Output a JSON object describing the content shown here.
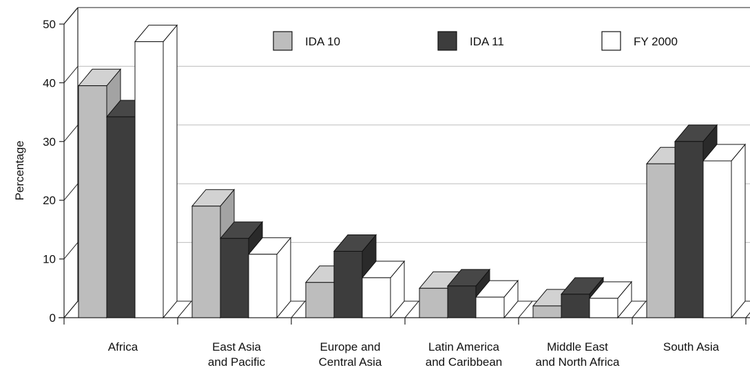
{
  "chart_data": {
    "type": "bar",
    "title": "",
    "xlabel": "",
    "ylabel": "Percentage",
    "ylim": [
      0,
      50
    ],
    "yticks": [
      "0",
      "10",
      "20",
      "30",
      "40",
      "50"
    ],
    "grid": true,
    "legend": "top",
    "categories": [
      [
        "Africa"
      ],
      [
        "East Asia",
        "and Pacific"
      ],
      [
        "Europe and",
        "Central Asia"
      ],
      [
        "Latin America",
        "and Caribbean"
      ],
      [
        "Middle East",
        "and North Africa"
      ],
      [
        "South Asia"
      ]
    ],
    "series": [
      {
        "name": "IDA 10",
        "color": "#bdbdbd",
        "top": "#d2d2d2",
        "side": "#a3a3a3",
        "values": [
          39.5,
          19.0,
          6.0,
          5.0,
          2.0,
          26.2
        ]
      },
      {
        "name": "IDA 11",
        "color": "#3d3d3d",
        "top": "#474747",
        "side": "#2a2a2a",
        "values": [
          34.2,
          13.5,
          11.3,
          5.4,
          4.0,
          30.0
        ]
      },
      {
        "name": "FY 2000",
        "color": "#ffffff",
        "top": "#ffffff",
        "side": "#ffffff",
        "values": [
          47.0,
          10.8,
          6.8,
          3.5,
          3.3,
          26.7
        ]
      }
    ]
  }
}
